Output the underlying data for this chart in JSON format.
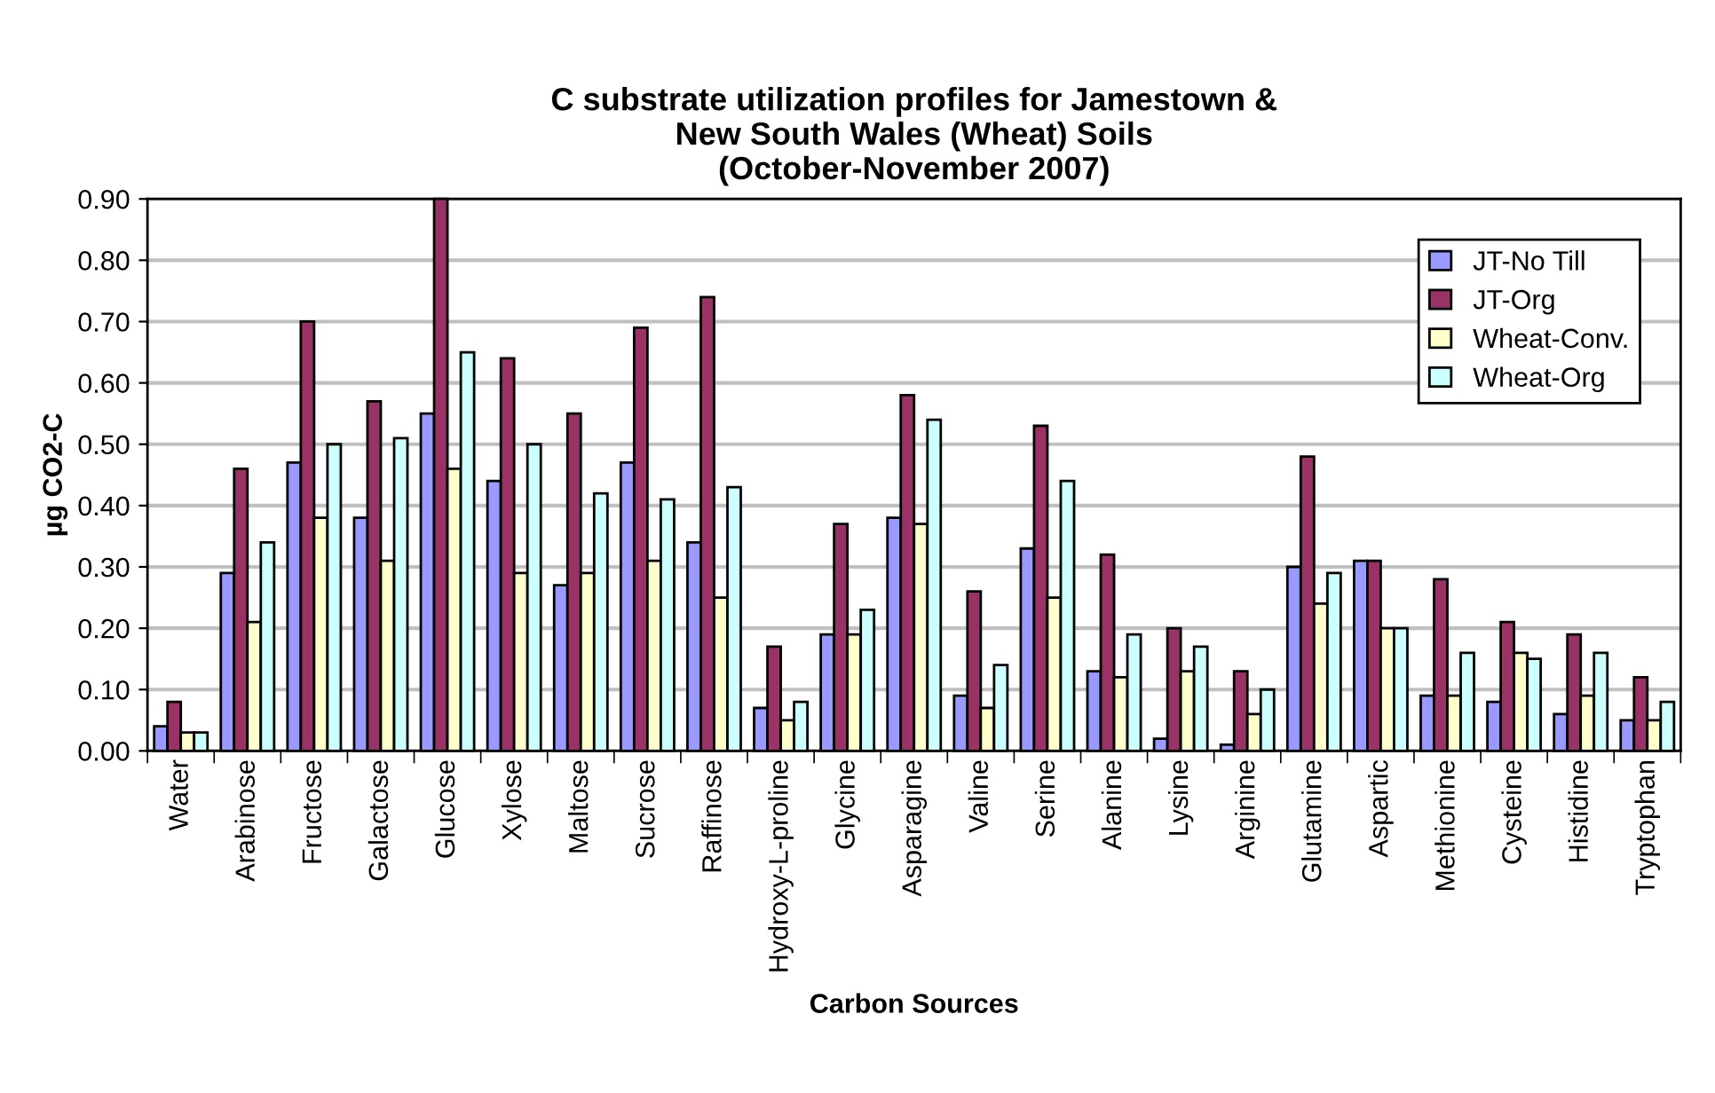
{
  "chart_data": {
    "type": "bar",
    "title": "C substrate utilization profiles for Jamestown &\nNew South Wales (Wheat) Soils\n(October-November 2007)",
    "xlabel": "Carbon Sources",
    "ylabel": "µg CO2-C",
    "categories": [
      "Water",
      "Arabinose",
      "Fructose",
      "Galactose",
      "Glucose",
      "Xylose",
      "Maltose",
      "Sucrose",
      "Raffinose",
      "Hydroxy-L-proline",
      "Glycine",
      "Asparagine",
      "Valine",
      "Serine",
      "Alanine",
      "Lysine",
      "Arginine",
      "Glutamine",
      "Aspartic",
      "Methionine",
      "Cysteine",
      "Histidine",
      "Tryptophan"
    ],
    "series": [
      {
        "name": "JT-No Till",
        "color": "#9999ff",
        "values": [
          0.04,
          0.29,
          0.47,
          0.38,
          0.55,
          0.44,
          0.27,
          0.47,
          0.34,
          0.07,
          0.19,
          0.38,
          0.09,
          0.33,
          0.13,
          0.02,
          0.01,
          0.3,
          0.31,
          0.09,
          0.08,
          0.06,
          0.05
        ]
      },
      {
        "name": "JT-Org",
        "color": "#993366",
        "values": [
          0.08,
          0.46,
          0.7,
          0.57,
          0.9,
          0.64,
          0.55,
          0.69,
          0.74,
          0.17,
          0.37,
          0.58,
          0.26,
          0.53,
          0.32,
          0.2,
          0.13,
          0.48,
          0.31,
          0.28,
          0.21,
          0.19,
          0.12
        ]
      },
      {
        "name": "Wheat-Conv.",
        "color": "#ffffcc",
        "values": [
          0.03,
          0.21,
          0.38,
          0.31,
          0.46,
          0.29,
          0.29,
          0.31,
          0.25,
          0.05,
          0.19,
          0.37,
          0.07,
          0.25,
          0.12,
          0.13,
          0.06,
          0.24,
          0.2,
          0.09,
          0.16,
          0.09,
          0.05
        ]
      },
      {
        "name": "Wheat-Org",
        "color": "#ccffff",
        "values": [
          0.03,
          0.34,
          0.5,
          0.51,
          0.65,
          0.5,
          0.42,
          0.41,
          0.43,
          0.08,
          0.23,
          0.54,
          0.14,
          0.44,
          0.19,
          0.17,
          0.1,
          0.29,
          0.2,
          0.16,
          0.15,
          0.16,
          0.08
        ]
      }
    ],
    "ylim": [
      0,
      0.9
    ],
    "yticks": [
      {
        "value": 0,
        "label": "0.00"
      },
      {
        "value": 0.1,
        "label": "0.10"
      },
      {
        "value": 0.2,
        "label": "0.20"
      },
      {
        "value": 0.3,
        "label": "0.30"
      },
      {
        "value": 0.4,
        "label": "0.40"
      },
      {
        "value": 0.5,
        "label": "0.50"
      },
      {
        "value": 0.6,
        "label": "0.60"
      },
      {
        "value": 0.7,
        "label": "0.70"
      },
      {
        "value": 0.8,
        "label": "0.80"
      },
      {
        "value": 0.9,
        "label": "0.90"
      }
    ],
    "grid": "y",
    "legend": "top right"
  }
}
